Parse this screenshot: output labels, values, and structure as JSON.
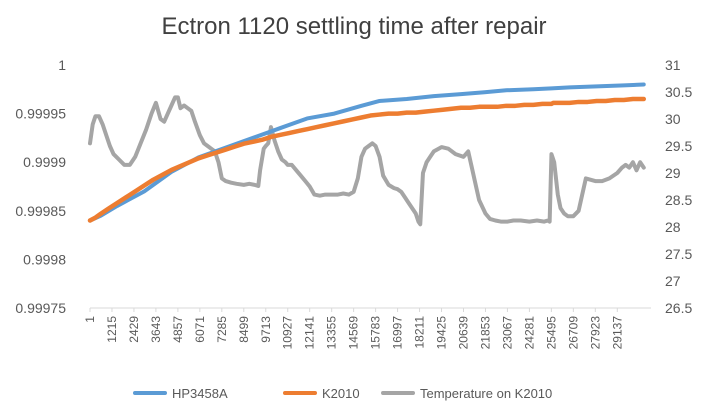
{
  "chart_data": {
    "type": "line",
    "title": "Ectron 1120 settling time after repair",
    "grid": false,
    "legend_position": "bottom",
    "x": {
      "label": "",
      "range": [
        1,
        31000
      ],
      "tick_labels": [
        "1",
        "1215",
        "2429",
        "3643",
        "4857",
        "6071",
        "7285",
        "8499",
        "9713",
        "10927",
        "12141",
        "13355",
        "14569",
        "15783",
        "16997",
        "18211",
        "19425",
        "20639",
        "21853",
        "23067",
        "24281",
        "25495",
        "26709",
        "27923",
        "29137"
      ]
    },
    "y_left": {
      "label": "",
      "range": [
        0.99975,
        1
      ],
      "tick_labels": [
        "0.99975",
        "0.9998",
        "0.99985",
        "0.9999",
        "0.99995",
        "1"
      ]
    },
    "y_right": {
      "label": "",
      "range": [
        26.5,
        31
      ],
      "tick_labels": [
        "26.5",
        "27",
        "27.5",
        "28",
        "28.5",
        "29",
        "29.5",
        "30",
        "30.5",
        "31"
      ]
    },
    "series": [
      {
        "name": "HP3458A",
        "color": "#5B9BD5",
        "axis": "left",
        "x": [
          1,
          600,
          1500,
          3000,
          4500,
          6000,
          7500,
          9000,
          10500,
          12000,
          13500,
          15000,
          16000,
          17500,
          19000,
          20500,
          21800,
          23000,
          24500,
          25500,
          26500,
          28000,
          29500,
          30600
        ],
        "y": [
          0.99984,
          0.999845,
          0.999855,
          0.99987,
          0.99989,
          0.999905,
          0.999915,
          0.999925,
          0.999935,
          0.999945,
          0.99995,
          0.999958,
          0.999963,
          0.999965,
          0.999968,
          0.99997,
          0.999972,
          0.999974,
          0.999975,
          0.999976,
          0.999977,
          0.999978,
          0.999979,
          0.99998
        ]
      },
      {
        "name": "K2010",
        "color": "#ED7D31",
        "axis": "left",
        "x": [
          1,
          300,
          600,
          1000,
          1500,
          2000,
          2500,
          3000,
          3500,
          4000,
          4500,
          5000,
          5500,
          6000,
          6500,
          7000,
          7500,
          8000,
          8500,
          9000,
          9500,
          10000,
          10500,
          11000,
          11500,
          12000,
          12500,
          13000,
          13500,
          14000,
          14500,
          15000,
          15500,
          16000,
          16500,
          17000,
          17500,
          18000,
          18500,
          19000,
          19500,
          20000,
          20500,
          21000,
          21500,
          22000,
          22500,
          23000,
          23500,
          24000,
          24500,
          25000,
          25500,
          25600,
          26000,
          26500,
          27000,
          27500,
          28000,
          28500,
          29000,
          29500,
          30000,
          30600
        ],
        "y": [
          0.99984,
          0.999843,
          0.999847,
          0.999852,
          0.999858,
          0.999864,
          0.99987,
          0.999876,
          0.999882,
          0.999887,
          0.999892,
          0.999896,
          0.9999,
          0.999904,
          0.999907,
          0.99991,
          0.999913,
          0.999916,
          0.999919,
          0.999921,
          0.999923,
          0.999926,
          0.999928,
          0.99993,
          0.999932,
          0.999934,
          0.999936,
          0.999938,
          0.99994,
          0.999942,
          0.999944,
          0.999946,
          0.999948,
          0.999949,
          0.99995,
          0.99995,
          0.999951,
          0.999951,
          0.999952,
          0.999953,
          0.999954,
          0.999955,
          0.999956,
          0.999956,
          0.999957,
          0.999957,
          0.999957,
          0.999958,
          0.999958,
          0.999959,
          0.999959,
          0.99996,
          0.99996,
          0.999961,
          0.999961,
          0.999961,
          0.999962,
          0.999962,
          0.999963,
          0.999963,
          0.999964,
          0.999964,
          0.999965,
          0.999965
        ]
      },
      {
        "name": "Temperature on K2010",
        "color": "#A5A5A5",
        "axis": "right",
        "x": [
          1,
          150,
          300,
          500,
          700,
          900,
          1100,
          1300,
          1600,
          1900,
          2200,
          2500,
          2800,
          3100,
          3400,
          3643,
          3900,
          4100,
          4300,
          4500,
          4700,
          4857,
          5000,
          5200,
          5400,
          5600,
          5800,
          6071,
          6300,
          6500,
          6700,
          6900,
          7100,
          7285,
          7500,
          7800,
          8100,
          8499,
          8800,
          9100,
          9300,
          9400,
          9600,
          9713,
          9850,
          10000,
          10200,
          10400,
          10600,
          10800,
          10927,
          11150,
          11400,
          11650,
          11900,
          12141,
          12400,
          12700,
          13000,
          13355,
          13700,
          14000,
          14300,
          14569,
          14800,
          15000,
          15200,
          15400,
          15600,
          15783,
          16000,
          16200,
          16500,
          16800,
          16997,
          17200,
          17400,
          17600,
          17800,
          18000,
          18150,
          18250,
          18400,
          18600,
          18800,
          19000,
          19425,
          19800,
          20200,
          20639,
          20900,
          21100,
          21300,
          21500,
          21853,
          22100,
          22400,
          22700,
          23067,
          23400,
          23800,
          24281,
          24700,
          25100,
          25300,
          25400,
          25500,
          25650,
          25850,
          26000,
          26200,
          26400,
          26709,
          27000,
          27200,
          27400,
          27923,
          28300,
          28700,
          29137,
          29400,
          29600,
          29800,
          30000,
          30200,
          30400,
          30600
        ],
        "y": [
          29.55,
          29.9,
          30.05,
          30.05,
          29.9,
          29.7,
          29.5,
          29.35,
          29.25,
          29.15,
          29.15,
          29.3,
          29.55,
          29.8,
          30.1,
          30.3,
          30.0,
          29.95,
          30.1,
          30.25,
          30.4,
          30.4,
          30.2,
          30.25,
          30.2,
          30.15,
          29.95,
          29.7,
          29.55,
          29.5,
          29.45,
          29.4,
          29.2,
          28.9,
          28.85,
          28.82,
          28.8,
          28.78,
          28.8,
          28.78,
          28.76,
          29.05,
          29.45,
          29.5,
          29.55,
          29.85,
          29.6,
          29.4,
          29.25,
          29.2,
          29.15,
          29.15,
          29.05,
          28.95,
          28.85,
          28.75,
          28.6,
          28.58,
          28.6,
          28.6,
          28.6,
          28.62,
          28.6,
          28.65,
          28.9,
          29.3,
          29.45,
          29.5,
          29.55,
          29.5,
          29.3,
          28.95,
          28.78,
          28.72,
          28.7,
          28.65,
          28.55,
          28.45,
          28.35,
          28.25,
          28.1,
          28.05,
          29.0,
          29.2,
          29.3,
          29.4,
          29.48,
          29.45,
          29.35,
          29.3,
          29.4,
          29.1,
          28.8,
          28.5,
          28.25,
          28.15,
          28.12,
          28.1,
          28.1,
          28.12,
          28.12,
          28.1,
          28.12,
          28.1,
          28.12,
          28.1,
          29.35,
          29.2,
          28.6,
          28.35,
          28.25,
          28.2,
          28.2,
          28.3,
          28.6,
          28.9,
          28.85,
          28.85,
          28.9,
          29.0,
          29.1,
          29.15,
          29.1,
          29.2,
          29.05,
          29.2,
          29.1
        ]
      }
    ],
    "legend": [
      "HP3458A",
      "K2010",
      "Temperature on K2010"
    ]
  }
}
